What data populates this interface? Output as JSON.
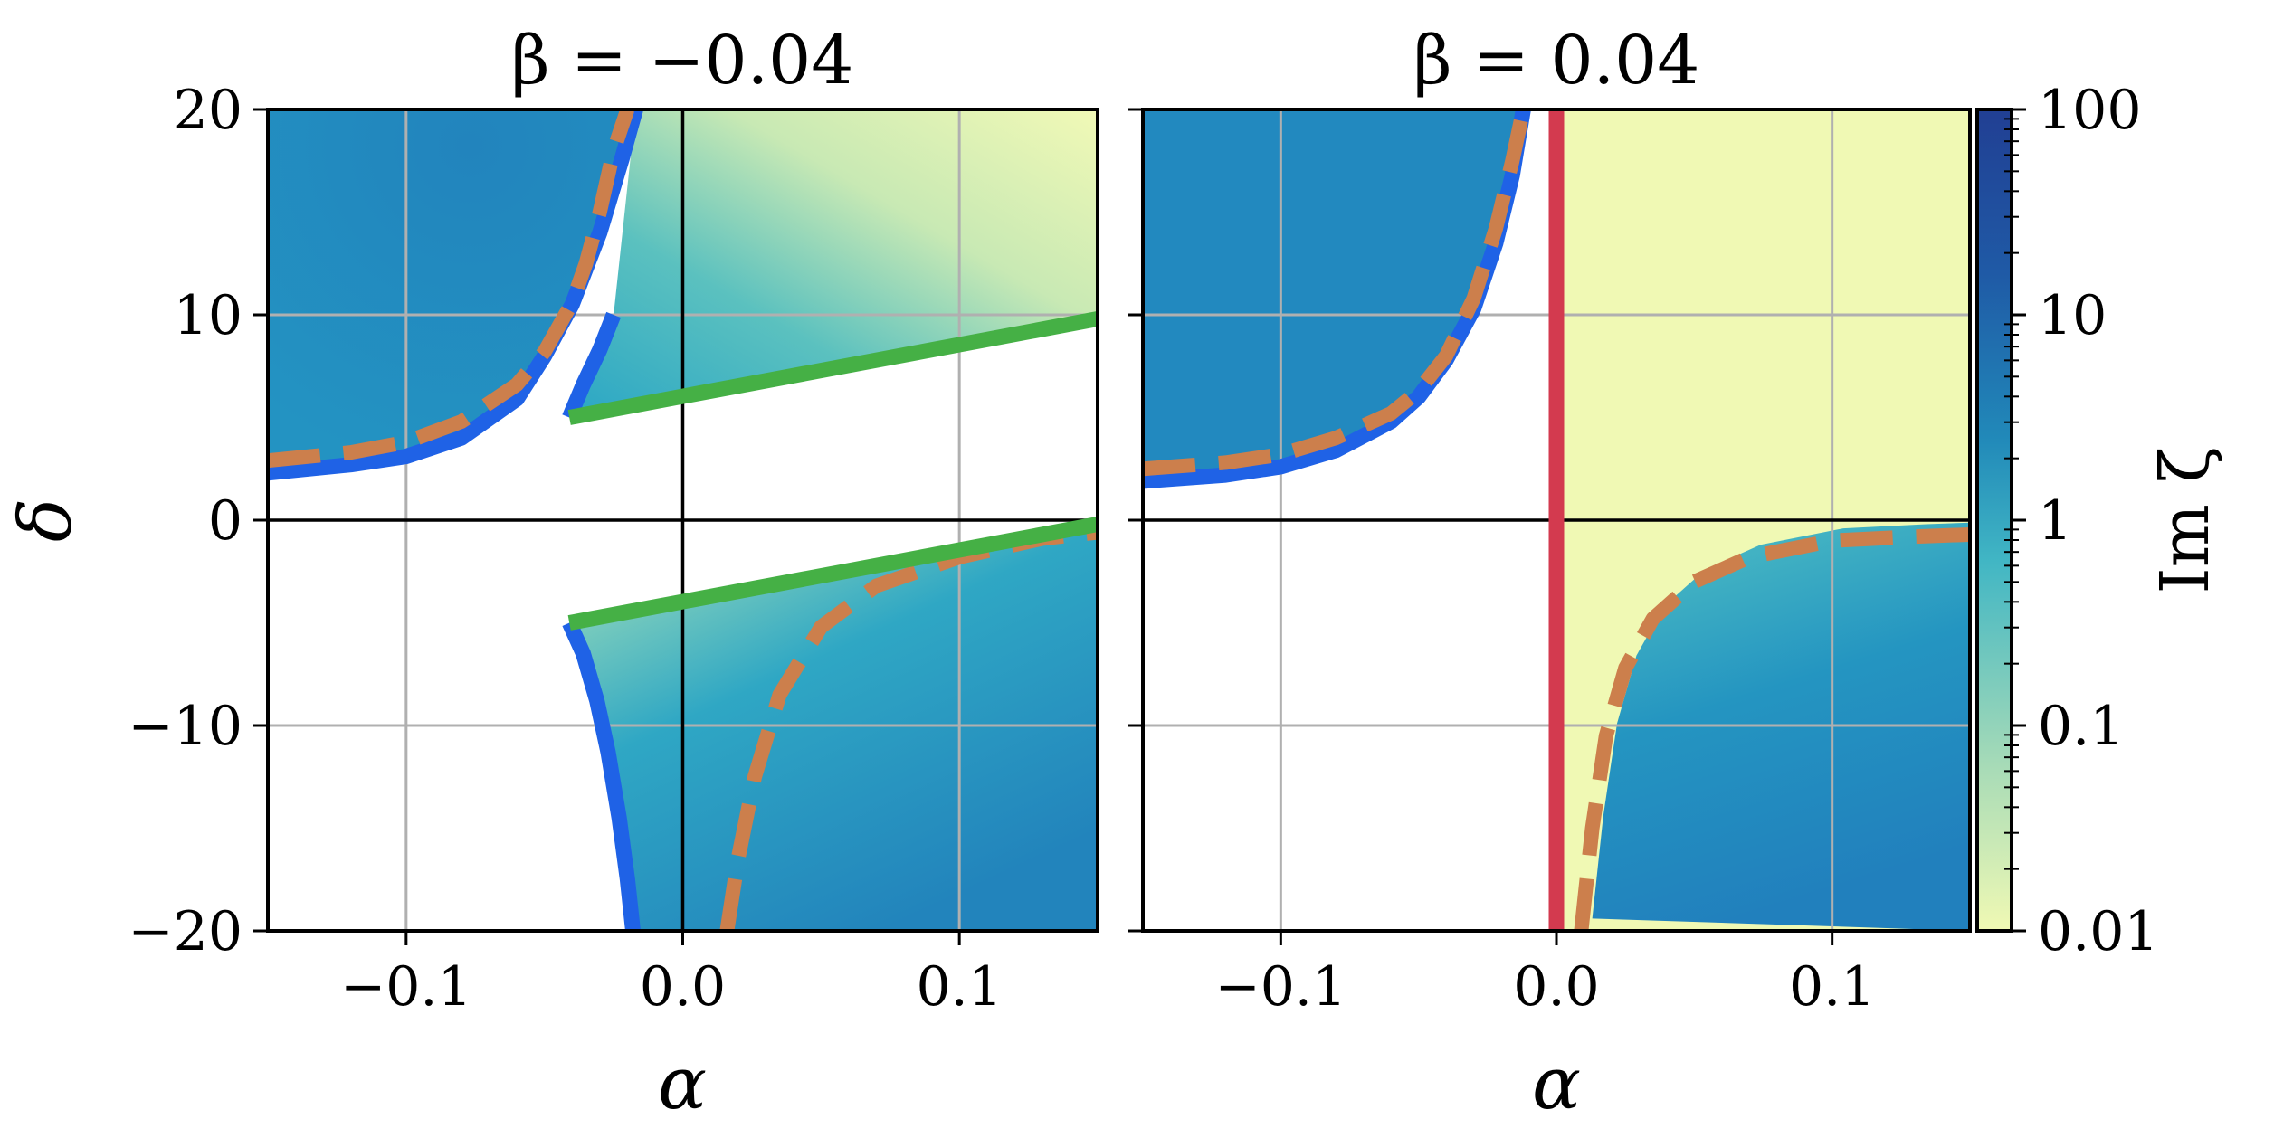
{
  "chart_data": [
    {
      "type": "heatmap",
      "title": "β = −0.04",
      "xlabel": "α",
      "ylabel": "δ",
      "xlim": [
        -0.15,
        0.15
      ],
      "ylim": [
        -20,
        20
      ],
      "xticks": [
        -0.1,
        0.0,
        0.1
      ],
      "xtick_labels": [
        "−0.1",
        "0.0",
        "0.1"
      ],
      "yticks": [
        -20,
        -10,
        0,
        10,
        20
      ],
      "ytick_labels": [
        "−20",
        "−10",
        "0",
        "10",
        "20"
      ],
      "grid": true,
      "series": [
        {
          "style": "solid",
          "color": "#1f62e6",
          "points": [
            [
              -0.15,
              2.3
            ],
            [
              -0.12,
              2.7
            ],
            [
              -0.1,
              3.1
            ],
            [
              -0.08,
              4.0
            ],
            [
              -0.06,
              5.9
            ],
            [
              -0.05,
              8.0
            ],
            [
              -0.04,
              10.5
            ],
            [
              -0.03,
              14.0
            ],
            [
              -0.022,
              17.6
            ],
            [
              -0.017,
              20
            ]
          ]
        },
        {
          "style": "solid",
          "color": "#1f62e6",
          "points": [
            [
              -0.041,
              5.0
            ],
            [
              -0.036,
              6.6
            ],
            [
              -0.03,
              8.3
            ],
            [
              -0.025,
              10.0
            ]
          ]
        },
        {
          "style": "solid",
          "color": "#1f62e6",
          "points": [
            [
              -0.041,
              -5.0
            ],
            [
              -0.036,
              -6.5
            ],
            [
              -0.031,
              -8.8
            ],
            [
              -0.027,
              -11.3
            ],
            [
              -0.023,
              -14.5
            ],
            [
              -0.02,
              -17.5
            ],
            [
              -0.018,
              -20
            ]
          ]
        },
        {
          "style": "dashed",
          "color": "#cc7f4c",
          "points": [
            [
              -0.15,
              2.9
            ],
            [
              -0.12,
              3.3
            ],
            [
              -0.1,
              3.8
            ],
            [
              -0.08,
              4.8
            ],
            [
              -0.06,
              6.6
            ],
            [
              -0.05,
              8.2
            ],
            [
              -0.04,
              10.6
            ],
            [
              -0.035,
              12.5
            ],
            [
              -0.03,
              15.0
            ],
            [
              -0.025,
              18.0
            ],
            [
              -0.02,
              20
            ]
          ]
        },
        {
          "style": "dashed",
          "color": "#cc7f4c",
          "points": [
            [
              0.016,
              -20
            ],
            [
              0.02,
              -16.5
            ],
            [
              0.026,
              -12.5
            ],
            [
              0.035,
              -8.5
            ],
            [
              0.05,
              -5.2
            ],
            [
              0.07,
              -3.2
            ],
            [
              0.1,
              -1.8
            ],
            [
              0.13,
              -0.9
            ],
            [
              0.15,
              -0.6
            ]
          ]
        },
        {
          "style": "solid",
          "color": "#45b045",
          "points": [
            [
              -0.041,
              5.0
            ],
            [
              0.15,
              9.8
            ]
          ]
        },
        {
          "style": "solid",
          "color": "#45b045",
          "points": [
            [
              -0.041,
              -5.0
            ],
            [
              0.15,
              -0.2
            ]
          ]
        }
      ]
    },
    {
      "type": "heatmap",
      "title": "β = 0.04",
      "xlabel": "α",
      "ylabel": "",
      "xlim": [
        -0.15,
        0.15
      ],
      "ylim": [
        -20,
        20
      ],
      "xticks": [
        -0.1,
        0.0,
        0.1
      ],
      "xtick_labels": [
        "−0.1",
        "0.0",
        "0.1"
      ],
      "yticks": [
        -20,
        -10,
        0,
        10,
        20
      ],
      "ytick_labels": [],
      "grid": true,
      "series": [
        {
          "style": "solid",
          "color": "#1f62e6",
          "points": [
            [
              -0.15,
              1.9
            ],
            [
              -0.12,
              2.2
            ],
            [
              -0.1,
              2.6
            ],
            [
              -0.08,
              3.4
            ],
            [
              -0.06,
              4.8
            ],
            [
              -0.05,
              6.0
            ],
            [
              -0.04,
              7.8
            ],
            [
              -0.03,
              10.3
            ],
            [
              -0.022,
              13.5
            ],
            [
              -0.016,
              16.8
            ],
            [
              -0.012,
              20
            ]
          ]
        },
        {
          "style": "dashed",
          "color": "#cc7f4c",
          "points": [
            [
              -0.15,
              2.5
            ],
            [
              -0.12,
              2.8
            ],
            [
              -0.1,
              3.2
            ],
            [
              -0.08,
              4.0
            ],
            [
              -0.06,
              5.2
            ],
            [
              -0.05,
              6.3
            ],
            [
              -0.04,
              8.0
            ],
            [
              -0.03,
              10.8
            ],
            [
              -0.022,
              14.2
            ],
            [
              -0.016,
              17.5
            ],
            [
              -0.012,
              20
            ]
          ]
        },
        {
          "style": "dashed",
          "color": "#cc7f4c",
          "points": [
            [
              0.009,
              -20
            ],
            [
              0.013,
              -15.0
            ],
            [
              0.018,
              -10.5
            ],
            [
              0.025,
              -7.2
            ],
            [
              0.035,
              -4.8
            ],
            [
              0.05,
              -3.0
            ],
            [
              0.07,
              -1.8
            ],
            [
              0.1,
              -1.0
            ],
            [
              0.13,
              -0.8
            ],
            [
              0.15,
              -0.7
            ]
          ]
        },
        {
          "style": "solid",
          "color": "#d33a4f",
          "points": [
            [
              0.0,
              -20
            ],
            [
              0.0,
              20
            ]
          ]
        }
      ]
    }
  ],
  "colorbar": {
    "label": "Im ζ",
    "scale": "log",
    "ticks": [
      0.01,
      0.1,
      1,
      10,
      100
    ],
    "tick_labels": [
      "0.01",
      "0.1",
      "1",
      "10",
      "100"
    ],
    "colors": [
      "#f0f9b4",
      "#a7dbb7",
      "#41b6c4",
      "#2189b9",
      "#1f5aa6",
      "#213f93"
    ]
  }
}
